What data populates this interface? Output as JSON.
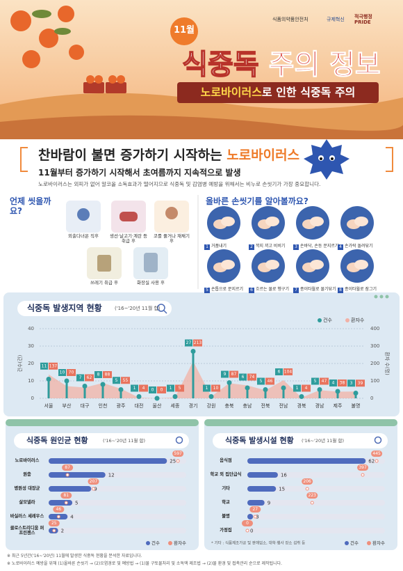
{
  "header": {
    "badge": "11월",
    "agency": "식품의약품안전처",
    "logo_2": "규제혁신",
    "logo_3": "적극행정 PRIDE",
    "title_a": "식중독",
    "title_b": "주의 정보",
    "subtitle_highlight": "노로바이러스",
    "subtitle_rest": "로 인한 식중독 주의"
  },
  "intro": {
    "headline_a": "찬바람이 불면 증가하기 시작하는",
    "headline_b": "노로바이러스",
    "subline": "11월부터 증가하기 시작해서 초여름까지 지속적으로 발생",
    "description": "노로바이러스는 외피가 없어 알코올 소독효과가 떨어지므로 식중독 및 감염병 예방을 위해서는 비누로 손씻기가 가장 중요합니다."
  },
  "when": {
    "title": "언제 씻을까요?",
    "items": [
      "외출다녀온 직후",
      "생선·날고기·계란 등 취급 후",
      "코를 풀거나 재채기 후",
      "쓰레기 취급 후",
      "화장실 사용 후"
    ]
  },
  "how": {
    "title": "올바른 손씻기를 알아볼까요?",
    "steps": [
      {
        "no": 1,
        "label": "거품내기"
      },
      {
        "no": 2,
        "label": "깍지 끼고 비비기"
      },
      {
        "no": 3,
        "label": "손바닥, 손등 문지르기"
      },
      {
        "no": 4,
        "label": "손가락 돌려닦기"
      },
      {
        "no": 5,
        "label": "손톱으로 문지르기"
      },
      {
        "no": 6,
        "label": "흐르는 물로 헹구기"
      },
      {
        "no": 7,
        "label": "종이타월로 물기닦기"
      },
      {
        "no": 8,
        "label": "종이타월로 잠그기"
      }
    ]
  },
  "chart_data": [
    {
      "type": "combo",
      "title": "식중독 발생지역 현황",
      "subtitle": "('16~'20년 11월 합)",
      "categories": [
        "서울",
        "부산",
        "대구",
        "인천",
        "광주",
        "대전",
        "울산",
        "세종",
        "경기",
        "강원",
        "충북",
        "충남",
        "전북",
        "전남",
        "경북",
        "경남",
        "제주",
        "불명"
      ],
      "series": [
        {
          "name": "건수",
          "color": "#2f9c9c",
          "values": [
            11,
            10,
            7,
            8,
            5,
            1,
            0,
            1,
            27,
            1,
            9,
            6,
            5,
            6,
            1,
            5,
            4,
            3
          ]
        },
        {
          "name": "환자수",
          "color": "#f2b1a6",
          "axis": "y2",
          "values": [
            137,
            70,
            62,
            88,
            55,
            4,
            0,
            5,
            213,
            10,
            87,
            74,
            46,
            104,
            4,
            47,
            38,
            39
          ]
        }
      ],
      "ylabel": "건수(건)",
      "y2label": "환자 수(명)",
      "ylim": [
        0,
        40
      ],
      "yticks": [
        0,
        10,
        20,
        30,
        40
      ],
      "y2lim": [
        0,
        400
      ],
      "y2ticks": [
        0,
        100,
        200,
        300,
        400
      ],
      "grid": true,
      "legend": "top-right"
    },
    {
      "type": "barh",
      "title": "식중독 원인균 현황",
      "subtitle": "('16~'20년 11월 합)",
      "categories": [
        "노로바이러스",
        "원충",
        "병원성 대장균",
        "살모넬라",
        "바실러스 세레우스",
        "클로스트리디움 퍼프린젠스"
      ],
      "series": [
        {
          "name": "건수",
          "color": "#4f6bbd",
          "values": [
            25,
            12,
            9,
            5,
            4,
            2
          ]
        },
        {
          "name": "환자수",
          "color": "#ef8f7c",
          "values": [
            597,
            87,
            207,
            81,
            46,
            25
          ]
        }
      ],
      "legend": "bottom-right"
    },
    {
      "type": "barh",
      "title": "식중독 발생시설 현황",
      "subtitle": "('16~'20년 11월 합)",
      "categories": [
        "음식점",
        "학교 외 집단급식",
        "기타",
        "학교",
        "불명",
        "가정집"
      ],
      "series": [
        {
          "name": "건수",
          "color": "#4f6bbd",
          "values": [
            62,
            16,
            15,
            9,
            3,
            0
          ]
        },
        {
          "name": "환자수",
          "color": "#ef8f7c",
          "values": [
            445,
            397,
            206,
            223,
            27,
            0
          ]
        }
      ],
      "note": "* 기타 : 식품제조가공 및 판매업소, 대학·행사 장소 섭취 등",
      "legend": "bottom-right"
    }
  ],
  "footnotes": [
    "※ 최근 5년간('16~'20년) 11월에 발생한 식중독 현황을 분석한 자료입니다.",
    "※ 노로바이러스 예방을 위해 (1)올바른 손씻기 → (2)오염경로 및 예방법 → (1)물 구토물처리 및 소독액 제조법 → (2)물 환경 및 접촉관리 순으로 제작됩니다."
  ]
}
